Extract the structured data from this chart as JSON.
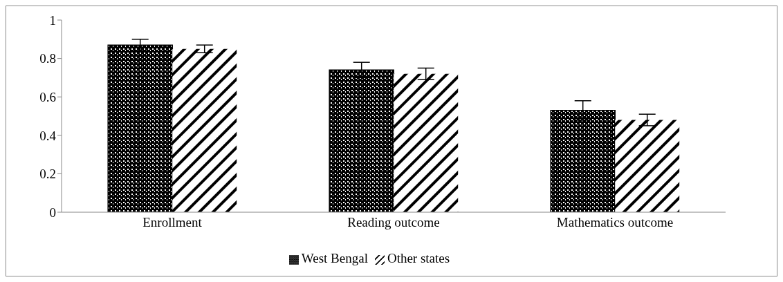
{
  "chart_data": {
    "type": "bar",
    "categories": [
      "Enrollment",
      "Reading outcome",
      "Mathematics outcome"
    ],
    "series": [
      {
        "name": "West Bengal",
        "color": "#000000",
        "values": [
          0.87,
          0.74,
          0.53
        ],
        "errors": [
          0.03,
          0.04,
          0.05
        ]
      },
      {
        "name": "Other states",
        "color": "#000000",
        "values": [
          0.85,
          0.72,
          0.48
        ],
        "errors": [
          0.02,
          0.03,
          0.03
        ]
      }
    ],
    "ylim": [
      0,
      1
    ],
    "yticks": [
      0,
      0.2,
      0.4,
      0.6,
      0.8,
      1
    ],
    "legend": "bottom"
  }
}
